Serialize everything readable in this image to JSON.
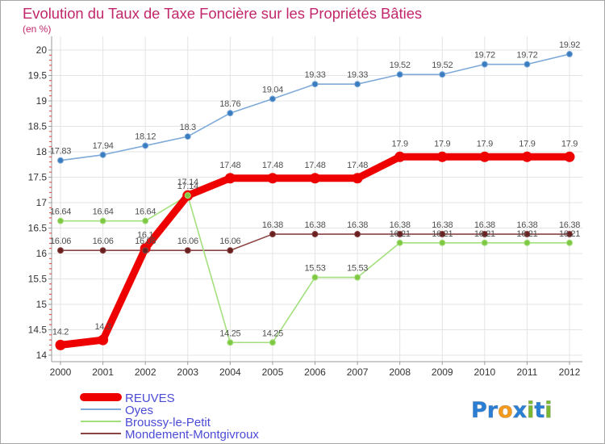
{
  "chart_data": {
    "type": "line",
    "title": "Evolution du Taux de Taxe Foncière sur les Propriétés Bâties",
    "ylabel": "(en %)",
    "x": [
      2000,
      2001,
      2002,
      2003,
      2004,
      2005,
      2006,
      2007,
      2008,
      2009,
      2010,
      2011,
      2012
    ],
    "ylim": [
      14,
      20
    ],
    "yticks": [
      14,
      14.5,
      15,
      15.5,
      16,
      16.5,
      17,
      17.5,
      18,
      18.5,
      19,
      19.5,
      20
    ],
    "grid": true,
    "series": [
      {
        "name": "REUVES",
        "color": "#ee0000",
        "marker_color": "#ee0000",
        "values": [
          14.2,
          14.3,
          16.1,
          17.14,
          17.48,
          17.48,
          17.48,
          17.48,
          17.9,
          17.9,
          17.9,
          17.9,
          17.9
        ]
      },
      {
        "name": "Oyes",
        "color": "#7ea9d8",
        "marker_color": "#3a7cc0",
        "values": [
          17.83,
          17.94,
          18.12,
          18.3,
          18.76,
          19.04,
          19.33,
          19.33,
          19.52,
          19.52,
          19.72,
          19.72,
          19.92
        ]
      },
      {
        "name": "Broussy-le-Petit",
        "color": "#a3e07d",
        "marker_color": "#80c843",
        "values": [
          16.64,
          16.64,
          16.64,
          17.14,
          14.25,
          14.25,
          15.53,
          15.53,
          16.21,
          16.21,
          16.21,
          16.21,
          16.21
        ]
      },
      {
        "name": "Mondement-Montgivroux",
        "color": "#8a4444",
        "marker_color": "#6b2020",
        "values": [
          16.06,
          16.06,
          16.06,
          16.06,
          16.06,
          16.38,
          16.38,
          16.38,
          16.38,
          16.38,
          16.38,
          16.38,
          16.38
        ]
      }
    ]
  },
  "logo": {
    "letters": [
      "P",
      "r",
      "o",
      "x",
      "i",
      "t",
      "i"
    ],
    "colors": [
      "#2a7fd4",
      "#2a7fd4",
      "#f39a1e",
      "#2a7fd4",
      "#7ab833",
      "#2a7fd4",
      "#7ab833"
    ]
  }
}
